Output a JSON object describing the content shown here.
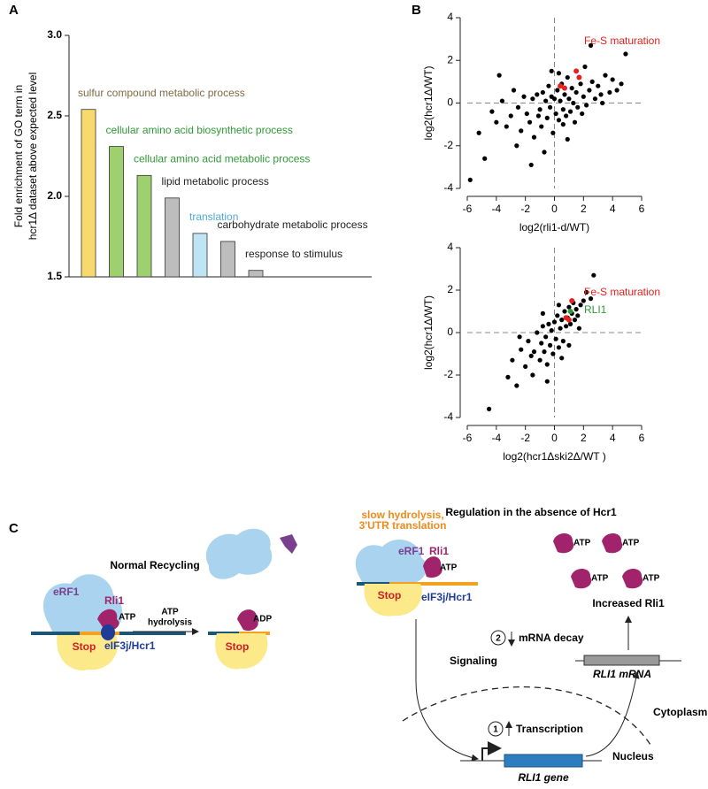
{
  "panel_labels": [
    "A",
    "B",
    "C"
  ],
  "chart_data": [
    {
      "type": "bar",
      "ylabel": [
        "Fold enrichment of GO term in",
        "hcr1Δ dataset above expected level"
      ],
      "categories": [
        "sulfur compound metabolic process",
        "cellular amino acid biosynthetic process",
        "cellular amino acid metabolic process",
        "lipid metabolic process",
        "translation",
        "carbohydrate metabolic process",
        "response to stimulus"
      ],
      "values": [
        2.54,
        2.31,
        2.13,
        1.99,
        1.77,
        1.72,
        1.54
      ],
      "colors": [
        "#f8d96e",
        "#9fd070",
        "#9fd070",
        "#bdbdbd",
        "#bfe4f3",
        "#bdbdbd",
        "#bdbdbd"
      ],
      "label_colors": [
        "#7d6b45",
        "#2f9a35",
        "#2f9a35",
        "#222222",
        "#4fa9dc",
        "#222222",
        "#222222"
      ],
      "ylim": [
        1.5,
        3.0
      ],
      "yticks": [
        1.5,
        {
          "value": 2,
          "label": "2.0"
        },
        2.5,
        {
          "value": 3,
          "label": "3.0"
        }
      ]
    },
    {
      "type": "scatter",
      "xlabel": "log2(rli1-d/WT)",
      "ylabel": "log2(hcr1Δ/WT)",
      "xlim": [
        -6,
        6
      ],
      "ylim": [
        -4,
        4
      ],
      "xticks": [
        -6,
        -4,
        -2,
        0,
        2,
        4,
        6
      ],
      "yticks": [
        -4,
        -2,
        0,
        2,
        4
      ],
      "series": [
        {
          "color": "#000000",
          "x": [
            -5.8,
            -5.2,
            -4.8,
            -4.3,
            -4.0,
            -3.6,
            -3.3,
            -3.0,
            -2.8,
            -2.5,
            -2.3,
            -2.1,
            -1.9,
            -1.7,
            -1.5,
            -1.4,
            -1.2,
            -1.0,
            -0.9,
            -0.8,
            -0.6,
            -0.5,
            -0.4,
            -0.3,
            -0.2,
            -0.1,
            0.0,
            0.1,
            0.2,
            0.3,
            0.4,
            0.5,
            0.6,
            0.7,
            0.8,
            0.9,
            1.0,
            1.1,
            1.2,
            1.3,
            1.5,
            1.6,
            1.8,
            2.0,
            2.2,
            2.4,
            2.6,
            2.8,
            3.0,
            3.2,
            3.5,
            3.8,
            4.0,
            4.3,
            4.6,
            4.9,
            -1.1,
            0.3,
            1.4,
            2.1,
            -2.6,
            0.9,
            -0.7,
            1.9,
            3.3,
            -3.8,
            -1.6,
            0.6,
            2.5,
            -0.2
          ],
          "y": [
            -3.6,
            -1.4,
            -2.6,
            -0.4,
            -0.9,
            0.1,
            -1.1,
            -0.6,
            0.6,
            -0.2,
            -1.3,
            0.3,
            -0.5,
            -0.9,
            0.2,
            -1.6,
            0.4,
            -0.3,
            -1.1,
            0.5,
            0.1,
            -0.7,
            0.8,
            -0.2,
            0.3,
            -1.4,
            0.2,
            -0.5,
            0.6,
            -0.8,
            0.1,
            0.9,
            -0.3,
            0.4,
            -0.6,
            1.2,
            0.2,
            -0.4,
            0.7,
            0.0,
            0.5,
            -0.2,
            0.9,
            0.3,
            -0.1,
            0.6,
            1.0,
            0.2,
            0.8,
            0.4,
            1.3,
            0.5,
            1.1,
            0.6,
            0.9,
            2.3,
            -0.6,
            1.4,
            -0.9,
            1.7,
            -2.0,
            -1.7,
            -2.3,
            -0.5,
            0.0,
            1.3,
            -2.9,
            -1.0,
            2.7,
            1.5
          ]
        },
        {
          "name": "Fe-S maturation",
          "color": "#e8211d",
          "x": [
            0.4,
            0.7,
            1.5,
            1.7
          ],
          "y": [
            0.8,
            0.7,
            1.5,
            1.2
          ]
        }
      ]
    },
    {
      "type": "scatter",
      "xlabel": "log2(hcr1Δski2Δ/WT )",
      "ylabel": "log2(hcr1Δ/WT)",
      "xlim": [
        -6,
        6
      ],
      "ylim": [
        -4,
        4
      ],
      "xticks": [
        -6,
        -4,
        -2,
        0,
        2,
        4,
        6
      ],
      "yticks": [
        -4,
        -2,
        0,
        2,
        4
      ],
      "series": [
        {
          "color": "#000000",
          "x": [
            -4.5,
            -3.2,
            -2.9,
            -2.6,
            -2.3,
            -2.0,
            -1.8,
            -1.6,
            -1.4,
            -1.2,
            -1.0,
            -0.9,
            -0.8,
            -0.7,
            -0.6,
            -0.5,
            -0.4,
            -0.3,
            -0.2,
            -0.1,
            0.0,
            0.1,
            0.2,
            0.3,
            0.4,
            0.5,
            0.6,
            0.7,
            0.8,
            0.9,
            1.0,
            1.1,
            1.2,
            1.3,
            1.4,
            1.5,
            1.6,
            1.8,
            2.0,
            2.2,
            2.5,
            2.7,
            -1.5,
            -0.5,
            0.5,
            1.0,
            -0.8,
            0.3,
            1.7,
            -2.4
          ],
          "y": [
            -3.6,
            -2.1,
            -1.3,
            -2.5,
            -0.8,
            -1.6,
            -0.4,
            -1.1,
            -0.9,
            0.0,
            -1.3,
            -0.5,
            0.3,
            -0.9,
            -0.2,
            -1.5,
            0.4,
            -0.6,
            0.1,
            -1.0,
            0.5,
            -0.3,
            0.8,
            -0.7,
            0.2,
            0.6,
            -0.4,
            1.0,
            0.3,
            0.7,
            1.2,
            0.4,
            0.9,
            1.4,
            0.6,
            1.1,
            0.8,
            1.3,
            1.5,
            1.9,
            1.6,
            2.7,
            -2.0,
            -2.3,
            -1.2,
            -0.6,
            0.9,
            1.3,
            0.2,
            -0.2
          ]
        },
        {
          "name": "Fe-S maturation",
          "color": "#e8211d",
          "x": [
            0.8,
            1.0,
            1.2
          ],
          "y": [
            0.7,
            0.6,
            1.5
          ]
        },
        {
          "name": "RLI1",
          "color": "#2f9a35",
          "x": [
            1.1
          ],
          "y": [
            1.0
          ]
        }
      ]
    }
  ],
  "diagram": {
    "left_title": "Normal Recycling",
    "right_title": "Regulation in the absence of Hcr1",
    "labels": [
      "eRF1",
      "Rli1",
      "ATP",
      "Stop",
      "eIF3j/Hcr1",
      "ATP",
      "hydrolysis",
      "ADP",
      "Stop",
      "slow hydrolysis,",
      "3'UTR translation",
      "eRF1",
      "Rli1",
      "ATP",
      "Stop",
      "eIF3j/Hcr1",
      "ATP",
      "ATP",
      "ATP",
      "ATP",
      "Increased Rli1",
      "2",
      "mRNA decay",
      "Signaling",
      "RLI1 mRNA",
      "1",
      "Transcription",
      "Cytoplasm",
      "Nucleus",
      "RLI1 gene"
    ]
  }
}
